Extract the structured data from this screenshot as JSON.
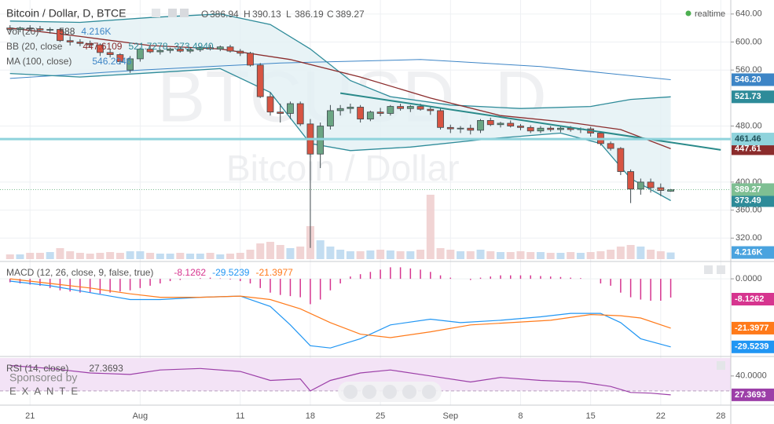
{
  "chart_data": [
    {
      "type": "candlestick",
      "title": "Bitcoin / Dollar, D, BTCE",
      "ohlc_labels": [
        "O",
        "H",
        "L",
        "C"
      ],
      "status": "realtime",
      "watermark": "BTCUSD, D",
      "watermark_subtitle": "Bitcoin / Dollar",
      "x": [
        "07-19",
        "07-20",
        "07-21",
        "07-22",
        "07-23",
        "07-24",
        "07-25",
        "07-26",
        "07-27",
        "07-28",
        "07-29",
        "07-30",
        "07-31",
        "08-01",
        "08-02",
        "08-03",
        "08-04",
        "08-05",
        "08-06",
        "08-07",
        "08-08",
        "08-09",
        "08-10",
        "08-11",
        "08-12",
        "08-13",
        "08-14",
        "08-15",
        "08-16",
        "08-17",
        "08-18",
        "08-19",
        "08-20",
        "08-21",
        "08-22",
        "08-23",
        "08-24",
        "08-25",
        "08-26",
        "08-27",
        "08-28",
        "08-29",
        "08-30",
        "08-31",
        "09-01",
        "09-02",
        "09-03",
        "09-04",
        "09-05",
        "09-06",
        "09-07",
        "09-08",
        "09-09",
        "09-10",
        "09-11",
        "09-12",
        "09-13",
        "09-14",
        "09-15",
        "09-16",
        "09-17",
        "09-18",
        "09-19",
        "09-20",
        "09-21",
        "09-22",
        "09-23"
      ],
      "open": [
        620,
        618,
        620,
        619,
        617,
        618,
        602,
        600,
        598,
        596,
        585,
        582,
        560,
        576,
        590,
        586,
        588,
        590,
        587,
        589,
        592,
        590,
        593,
        587,
        584,
        567,
        522,
        500,
        498,
        512,
        483,
        440,
        480,
        502,
        505,
        507,
        490,
        500,
        498,
        508,
        505,
        508,
        504,
        502,
        478,
        476,
        477,
        474,
        488,
        482,
        484,
        480,
        478,
        473,
        477,
        475,
        477,
        475,
        476,
        470,
        455,
        448,
        415,
        390,
        400,
        392,
        386.94
      ],
      "high": [
        624,
        622,
        624,
        623,
        621,
        620,
        608,
        604,
        602,
        598,
        590,
        584,
        580,
        592,
        594,
        590,
        592,
        593,
        592,
        594,
        596,
        595,
        596,
        590,
        586,
        570,
        528,
        512,
        515,
        515,
        490,
        485,
        510,
        510,
        512,
        510,
        502,
        506,
        510,
        512,
        510,
        512,
        507,
        505,
        482,
        480,
        482,
        490,
        492,
        486,
        488,
        483,
        481,
        480,
        480,
        479,
        480,
        478,
        479,
        472,
        458,
        450,
        418,
        405,
        405,
        398,
        390.13
      ],
      "low": [
        615,
        614,
        616,
        615,
        612,
        600,
        595,
        594,
        592,
        580,
        578,
        568,
        556,
        572,
        584,
        582,
        584,
        585,
        584,
        586,
        588,
        587,
        585,
        580,
        565,
        520,
        495,
        485,
        490,
        480,
        306,
        420,
        475,
        495,
        498,
        485,
        487,
        494,
        495,
        502,
        500,
        502,
        496,
        475,
        470,
        470,
        468,
        470,
        480,
        478,
        478,
        474,
        470,
        470,
        472,
        471,
        472,
        470,
        465,
        452,
        445,
        410,
        370,
        382,
        385,
        380,
        386.19
      ],
      "close": [
        618,
        620,
        619,
        617,
        618,
        602,
        600,
        598,
        596,
        585,
        582,
        572,
        576,
        590,
        586,
        588,
        590,
        587,
        589,
        592,
        590,
        593,
        587,
        584,
        567,
        522,
        500,
        498,
        512,
        483,
        440,
        480,
        502,
        505,
        507,
        490,
        500,
        498,
        508,
        505,
        508,
        504,
        502,
        478,
        476,
        477,
        474,
        488,
        482,
        484,
        480,
        478,
        473,
        477,
        475,
        477,
        475,
        476,
        470,
        455,
        448,
        415,
        390,
        400,
        392,
        388,
        389.27
      ],
      "up_color": "#6ba583",
      "down_color": "#d75442",
      "close_label_color": "#7fbf93",
      "xlim": [
        "07-18",
        "09-29"
      ],
      "xticks": [
        {
          "value": "07-21",
          "label": "21"
        },
        {
          "value": "08-01",
          "label": "Aug"
        },
        {
          "value": "08-11",
          "label": "11"
        },
        {
          "value": "08-18",
          "label": "18"
        },
        {
          "value": "08-25",
          "label": "25"
        },
        {
          "value": "09-01",
          "label": "Sep"
        },
        {
          "value": "09-08",
          "label": "8"
        },
        {
          "value": "09-15",
          "label": "15"
        },
        {
          "value": "09-22",
          "label": "22"
        },
        {
          "value": "09-28",
          "label": "28"
        }
      ],
      "ylim": [
        290,
        660
      ],
      "yticks": [
        {
          "value": 640,
          "label": "640.00"
        },
        {
          "value": 600,
          "label": "600.00"
        },
        {
          "value": 560,
          "label": "560.00"
        },
        {
          "value": 480,
          "label": "480.00"
        },
        {
          "value": 400,
          "label": "400.00"
        },
        {
          "value": 360,
          "label": "360.00"
        },
        {
          "value": 320,
          "label": "320.00"
        }
      ],
      "grid": true,
      "volume": {
        "values": [
          3000,
          3000,
          4000,
          4000,
          4500,
          7000,
          5000,
          4000,
          3500,
          4000,
          4500,
          4000,
          5000,
          5000,
          4000,
          3500,
          3500,
          4000,
          3500,
          3500,
          4000,
          3000,
          3500,
          4000,
          6000,
          10000,
          11000,
          9000,
          7000,
          8000,
          21000,
          12000,
          8000,
          6000,
          5000,
          5000,
          5500,
          6000,
          5500,
          5000,
          5000,
          6000,
          41000,
          7000,
          6000,
          5000,
          5000,
          6000,
          5000,
          4500,
          4500,
          5000,
          4500,
          4500,
          4000,
          4000,
          4500,
          4000,
          4500,
          5000,
          6000,
          8000,
          9000,
          8000,
          6000,
          5000,
          4216
        ],
        "value_labels": [
          null,
          null,
          null,
          null,
          null,
          null,
          null,
          null,
          null,
          null,
          null,
          null,
          null,
          null,
          null,
          null,
          null,
          null,
          null,
          null,
          null,
          null,
          null,
          null,
          null,
          null,
          null,
          null,
          null,
          null,
          null,
          null,
          null,
          null,
          null,
          null,
          null,
          null,
          null,
          null,
          null,
          null,
          null,
          null,
          null,
          null,
          null,
          null,
          null,
          null,
          null,
          null,
          null,
          null,
          null,
          null,
          null,
          null,
          null,
          null,
          null,
          null,
          null,
          null,
          null,
          null,
          "4.216K"
        ],
        "ylim": [
          0,
          165000
        ],
        "up_color": "#b9d7ee",
        "down_color": "#efcccc",
        "label_color": "#4aa3df"
      },
      "series": [
        {
          "color": "#3d85c6",
          "x": [
            "07-19",
            "08-01",
            "08-15",
            "08-29",
            "09-10",
            "09-23"
          ],
          "values": [
            548,
            560,
            570,
            575,
            565,
            546.2046
          ],
          "value_labels": [
            null,
            null,
            null,
            null,
            null,
            "546.20"
          ]
        },
        {
          "color": "#2e8b99",
          "x": [
            "07-19",
            "07-26",
            "08-02",
            "08-09",
            "08-14",
            "08-18",
            "08-22",
            "08-26",
            "09-01",
            "09-08",
            "09-15",
            "09-19",
            "09-23"
          ],
          "values": [
            630,
            628,
            635,
            640,
            625,
            590,
            545,
            522,
            510,
            505,
            508,
            518,
            521.7278
          ],
          "value_labels": [
            null,
            null,
            null,
            null,
            null,
            null,
            null,
            null,
            null,
            null,
            null,
            null,
            "521.73"
          ]
        },
        {
          "color": "#8b2c2c",
          "x": [
            "07-19",
            "07-26",
            "08-02",
            "08-09",
            "08-16",
            "08-23",
            "08-30",
            "09-06",
            "09-13",
            "09-18",
            "09-23"
          ],
          "values": [
            620,
            608,
            595,
            590,
            575,
            550,
            520,
            495,
            485,
            475,
            447.6109
          ],
          "value_labels": [
            null,
            null,
            null,
            null,
            null,
            null,
            null,
            null,
            null,
            null,
            "447.61"
          ]
        },
        {
          "color": "#2e8b99",
          "x": [
            "07-19",
            "07-26",
            "08-02",
            "08-09",
            "08-14",
            "08-18",
            "08-22",
            "08-28",
            "09-05",
            "09-12",
            "09-16",
            "09-19",
            "09-23"
          ],
          "values": [
            555,
            550,
            556,
            562,
            528,
            455,
            445,
            450,
            462,
            470,
            455,
            405,
            373.494
          ],
          "value_labels": [
            null,
            null,
            null,
            null,
            null,
            null,
            null,
            null,
            null,
            null,
            null,
            null,
            "373.49"
          ]
        }
      ],
      "fill_between": [
        1,
        3
      ],
      "fill_color": "#e2f0f4",
      "legend": [
        {
          "name": "Vol (20)",
          "readouts": [
            "588",
            "4.216K"
          ],
          "colors": [
            "#444444",
            "#3d85c6"
          ]
        },
        {
          "name": "BB (20, close",
          "readouts": [
            "447.6109",
            "521.7278",
            "373.4940"
          ],
          "colors": [
            "#8b2c2c",
            "#2e8b99",
            "#2e8b99"
          ]
        },
        {
          "name": "MA (100, close)",
          "readouts": [
            "546.2046"
          ],
          "colors": [
            "#3d85c6"
          ]
        }
      ],
      "drawings": [
        {
          "type": "trendline",
          "x": [
            "08-21",
            "09-28"
          ],
          "values": [
            527,
            446
          ],
          "color": "#2a8a8a"
        },
        {
          "type": "horizontal",
          "value": 461.46,
          "color": "#8fd3dc"
        }
      ]
    },
    {
      "type": "macd",
      "title": "MACD (12, 26, close, 9, false, true)",
      "x": [
        "07-19",
        "07-20",
        "07-21",
        "07-22",
        "07-23",
        "07-24",
        "07-25",
        "07-26",
        "07-27",
        "07-28",
        "07-29",
        "07-30",
        "07-31",
        "08-01",
        "08-02",
        "08-03",
        "08-04",
        "08-05",
        "08-06",
        "08-07",
        "08-08",
        "08-09",
        "08-10",
        "08-11",
        "08-12",
        "08-13",
        "08-14",
        "08-15",
        "08-16",
        "08-17",
        "08-18",
        "08-19",
        "08-20",
        "08-21",
        "08-22",
        "08-23",
        "08-24",
        "08-25",
        "08-26",
        "08-27",
        "08-28",
        "08-29",
        "08-30",
        "08-31",
        "09-01",
        "09-02",
        "09-03",
        "09-04",
        "09-05",
        "09-06",
        "09-07",
        "09-08",
        "09-09",
        "09-10",
        "09-11",
        "09-12",
        "09-13",
        "09-14",
        "09-15",
        "09-16",
        "09-17",
        "09-18",
        "09-19",
        "09-20",
        "09-21",
        "09-22",
        "09-23"
      ],
      "histogram": {
        "color": "#d6358f",
        "values": [
          -1.5,
          -2,
          -2.5,
          -3,
          -4,
          -5,
          -5.5,
          -6,
          -6,
          -6.5,
          -6,
          -5.5,
          -5,
          -4,
          -3,
          -2,
          -1,
          -0.5,
          0,
          0.3,
          0.5,
          0.2,
          -0.3,
          -1,
          -2,
          -4,
          -6,
          -7,
          -7.5,
          -8,
          -11,
          -9,
          -5,
          -2,
          1,
          2,
          3,
          4,
          5,
          5,
          4.5,
          4,
          3,
          1.5,
          0.5,
          0,
          -0.5,
          0.5,
          1,
          1.5,
          1.5,
          1.5,
          1.5,
          1.2,
          1,
          0.8,
          0.5,
          0.3,
          0,
          -2,
          -3,
          -6,
          -8,
          -9,
          -9.5,
          -9.5,
          -8.1262
        ]
      },
      "series": [
        {
          "color": "#2196f3",
          "x": [
            "07-19",
            "07-23",
            "07-27",
            "07-31",
            "08-03",
            "08-07",
            "08-11",
            "08-14",
            "08-16",
            "08-18",
            "08-20",
            "08-23",
            "08-26",
            "08-30",
            "09-02",
            "09-06",
            "09-10",
            "09-13",
            "09-16",
            "09-18",
            "09-20",
            "09-23"
          ],
          "values": [
            -1,
            -3,
            -6,
            -9,
            -9,
            -8,
            -7.5,
            -12,
            -20,
            -29,
            -30,
            -26,
            -20,
            -17.5,
            -19,
            -18,
            -16.5,
            -15,
            -15,
            -19,
            -26,
            -29.5239
          ]
        },
        {
          "color": "#ff7a1a",
          "x": [
            "07-19",
            "07-23",
            "07-27",
            "07-31",
            "08-03",
            "08-07",
            "08-11",
            "08-14",
            "08-17",
            "08-20",
            "08-23",
            "08-26",
            "08-30",
            "09-03",
            "09-07",
            "09-11",
            "09-15",
            "09-18",
            "09-20",
            "09-23"
          ],
          "values": [
            0,
            -2,
            -4,
            -6.5,
            -8,
            -8,
            -7.5,
            -9,
            -13,
            -19,
            -24,
            -25.5,
            -23,
            -20,
            -19,
            -18,
            -15.5,
            -16,
            -17,
            -21.3977
          ]
        }
      ],
      "ylim": [
        -33,
        6.5
      ],
      "yticks": [
        {
          "value": 0,
          "label": "0.0000"
        }
      ]
    },
    {
      "type": "rsi",
      "title": "RSI (14, close)",
      "color": "#9c3fa8",
      "band": [
        30,
        70
      ],
      "band_color": "#f3e3f6",
      "x": [
        "07-19",
        "07-23",
        "07-27",
        "07-31",
        "08-03",
        "08-07",
        "08-11",
        "08-14",
        "08-17",
        "08-18",
        "08-20",
        "08-23",
        "08-26",
        "08-30",
        "09-03",
        "09-06",
        "09-10",
        "09-14",
        "09-17",
        "09-19",
        "09-21",
        "09-23"
      ],
      "values": [
        47,
        45,
        42,
        41,
        44,
        45,
        43,
        37,
        38,
        30,
        37,
        42,
        44,
        40,
        36,
        39,
        37,
        36,
        33,
        29,
        28.5,
        27.3693
      ],
      "ylim": [
        21,
        52
      ],
      "yticks": [
        {
          "value": 40,
          "label": "40.0000"
        }
      ]
    }
  ],
  "sponsor": {
    "label": "Sponsored by",
    "name": "EXANTE"
  }
}
